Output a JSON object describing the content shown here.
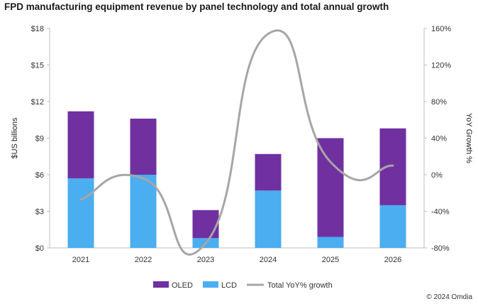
{
  "chart_data": {
    "type": "bar",
    "title": "FPD manufacturing equipment revenue by panel technology and total annual growth",
    "categories": [
      "2021",
      "2022",
      "2023",
      "2024",
      "2025",
      "2026"
    ],
    "series": [
      {
        "name": "LCD",
        "kind": "stacked-bar",
        "color": "#4aaef0",
        "values": [
          5.7,
          6.0,
          0.8,
          4.7,
          0.9,
          3.5
        ]
      },
      {
        "name": "OLED",
        "kind": "stacked-bar",
        "color": "#7030a0",
        "values": [
          5.5,
          4.6,
          2.3,
          3.0,
          8.1,
          6.3
        ]
      },
      {
        "name": "Total YoY% growth",
        "kind": "line",
        "axis": "right",
        "color": "#a6a6a6",
        "values": [
          -27,
          -4,
          -75,
          154,
          14,
          10
        ]
      }
    ],
    "ylabel": "$US billions",
    "y2label": "YoY Growth %",
    "ylim": [
      0,
      18
    ],
    "yticks": [
      0,
      3,
      6,
      9,
      12,
      15,
      18
    ],
    "ytick_labels": [
      "$0",
      "$3",
      "$6",
      "$9",
      "$12",
      "$15",
      "$18"
    ],
    "y2lim": [
      -80,
      160
    ],
    "y2ticks": [
      -80,
      -40,
      0,
      40,
      80,
      120,
      160
    ],
    "y2tick_labels": [
      "-80%",
      "-40%",
      "0%",
      "40%",
      "80%",
      "120%",
      "160%"
    ],
    "legend": [
      {
        "label": "OLED",
        "color": "#7030a0",
        "kind": "swatch"
      },
      {
        "label": "LCD",
        "color": "#4aaef0",
        "kind": "swatch"
      },
      {
        "label": "Total YoY% growth",
        "color": "#a6a6a6",
        "kind": "line"
      }
    ],
    "legend_position": "bottom",
    "footer": "© 2024 Omdia"
  }
}
